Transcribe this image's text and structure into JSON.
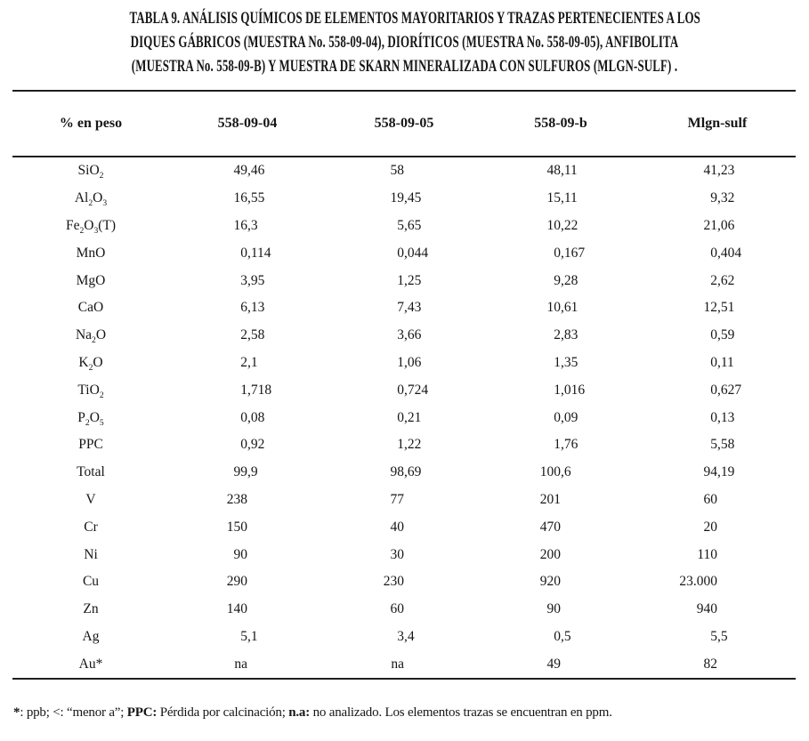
{
  "title": {
    "lines": [
      "TABLA 9. ANÁLISIS QUÍMICOS DE ELEMENTOS MAYORITARIOS Y TRAZAS PERTENECIENTES A LOS",
      "DIQUES GÁBRICOS (MUESTRA No. 558-09-04), DIORÍTICOS (MUESTRA No. 558-09-05), ANFIBOLITA",
      "(MUESTRA No. 558-09-B) Y MUESTRA DE SKARN MINERALIZADA CON SULFUROS (MLGN-SULF) ."
    ]
  },
  "table": {
    "columns": [
      "% en peso",
      "558-09-04",
      "558-09-05",
      "558-09-b",
      "Mlgn-sulf"
    ],
    "rows": [
      {
        "element": "SiO~2~",
        "values": [
          "49,46",
          "58",
          "48,11",
          "41,23"
        ]
      },
      {
        "element": "Al~2~O~3~",
        "values": [
          "16,55",
          "19,45",
          "15,11",
          "9,32"
        ]
      },
      {
        "element": "Fe~2~O~3~(T)",
        "values": [
          "16,3",
          "5,65",
          "10,22",
          "21,06"
        ]
      },
      {
        "element": "MnO",
        "values": [
          "0,114",
          "0,044",
          "0,167",
          "0,404"
        ]
      },
      {
        "element": "MgO",
        "values": [
          "3,95",
          "1,25",
          "9,28",
          "2,62"
        ]
      },
      {
        "element": "CaO",
        "values": [
          "6,13",
          "7,43",
          "10,61",
          "12,51"
        ]
      },
      {
        "element": "Na~2~O",
        "values": [
          "2,58",
          "3,66",
          "2,83",
          "0,59"
        ]
      },
      {
        "element": "K~2~O",
        "values": [
          "2,1",
          "1,06",
          "1,35",
          "0,11"
        ]
      },
      {
        "element": "TiO~2~",
        "values": [
          "1,718",
          "0,724",
          "1,016",
          "0,627"
        ]
      },
      {
        "element": "P~2~O~5~",
        "values": [
          "0,08",
          "0,21",
          "0,09",
          "0,13"
        ]
      },
      {
        "element": "PPC",
        "values": [
          "0,92",
          "1,22",
          "1,76",
          "5,58"
        ]
      },
      {
        "element": "Total",
        "values": [
          "99,9",
          "98,69",
          "100,6",
          "94,19"
        ]
      },
      {
        "element": "V",
        "values": [
          "238",
          "77",
          "201",
          "60"
        ]
      },
      {
        "element": "Cr",
        "values": [
          "150",
          "40",
          "470",
          "20"
        ]
      },
      {
        "element": "Ni",
        "values": [
          "90",
          "30",
          "200",
          "110"
        ]
      },
      {
        "element": "Cu",
        "values": [
          "290",
          "230",
          "920",
          "23.000"
        ]
      },
      {
        "element": "Zn",
        "values": [
          "140",
          "60",
          "90",
          "940"
        ]
      },
      {
        "element": "Ag",
        "values": [
          "5,1",
          "3,4",
          "0,5",
          "5,5"
        ]
      },
      {
        "element": "Au*",
        "values": [
          "na",
          "na",
          "49",
          "82"
        ]
      }
    ]
  },
  "footnote": {
    "segments": [
      {
        "text": "*",
        "bold": true
      },
      {
        "text": ": ppb;  <: “menor a”; ",
        "bold": false
      },
      {
        "text": "PPC:",
        "bold": true
      },
      {
        "text": " Pérdida por calcinación; ",
        "bold": false
      },
      {
        "text": "n.a:",
        "bold": true
      },
      {
        "text": " no analizado. Los elementos trazas se encuentran en ppm.",
        "bold": false
      }
    ]
  },
  "colors": {
    "text": "#161616",
    "rule": "#1f1f1f",
    "background": "#ffffff"
  }
}
